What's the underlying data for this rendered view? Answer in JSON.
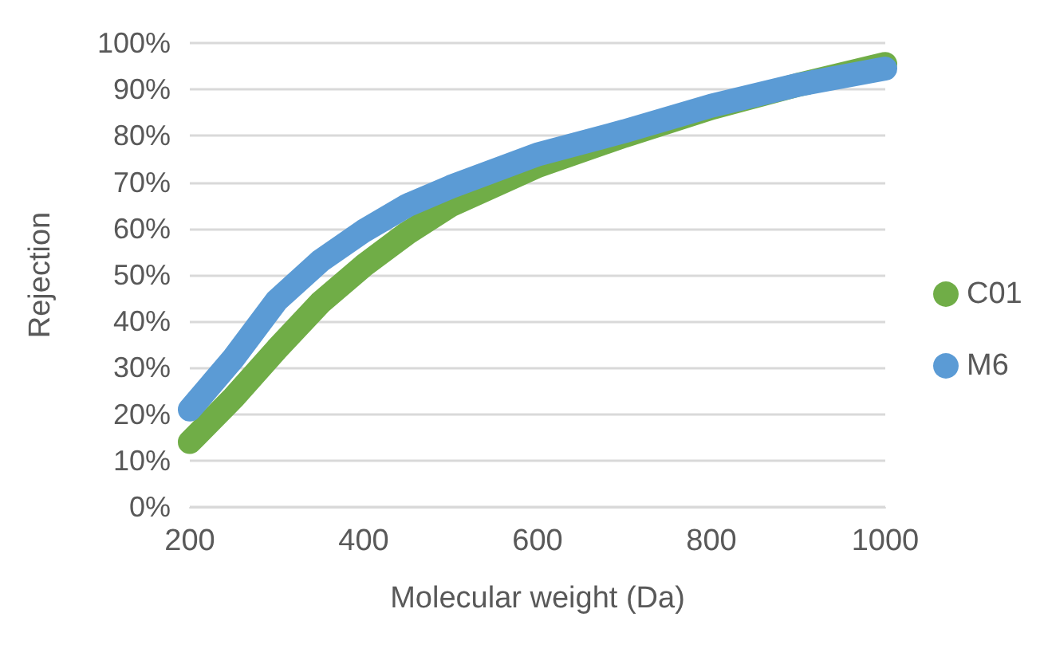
{
  "chart_data": {
    "type": "line",
    "xlabel": "Molecular weight (Da)",
    "ylabel": "Rejection",
    "x": [
      200,
      250,
      300,
      350,
      400,
      450,
      500,
      600,
      700,
      800,
      900,
      1000
    ],
    "series": [
      {
        "name": "C01",
        "color": "#70ad47",
        "values": [
          14,
          23.5,
          34,
          44,
          52,
          59,
          65,
          73.5,
          80,
          86,
          91,
          95.5
        ]
      },
      {
        "name": "M6",
        "color": "#5b9bd5",
        "values": [
          21,
          32,
          44.5,
          53,
          59.5,
          65,
          69,
          76,
          81,
          86.5,
          91,
          94.5
        ]
      }
    ],
    "xlim": [
      200,
      1000
    ],
    "xticks": [
      200,
      400,
      600,
      800,
      1000
    ],
    "ylim": [
      0,
      100
    ],
    "yticks": [
      {
        "value": 0,
        "label": "0%"
      },
      {
        "value": 10,
        "label": "10%"
      },
      {
        "value": 20,
        "label": "20%"
      },
      {
        "value": 30,
        "label": "30%"
      },
      {
        "value": 40,
        "label": "40%"
      },
      {
        "value": 50,
        "label": "50%"
      },
      {
        "value": 60,
        "label": "60%"
      },
      {
        "value": 70,
        "label": "70%"
      },
      {
        "value": 80,
        "label": "80%"
      },
      {
        "value": 90,
        "label": "90%"
      },
      {
        "value": 100,
        "label": "100%"
      }
    ],
    "grid": "y",
    "legend": "right",
    "marker": "none",
    "line_style": "solid"
  }
}
